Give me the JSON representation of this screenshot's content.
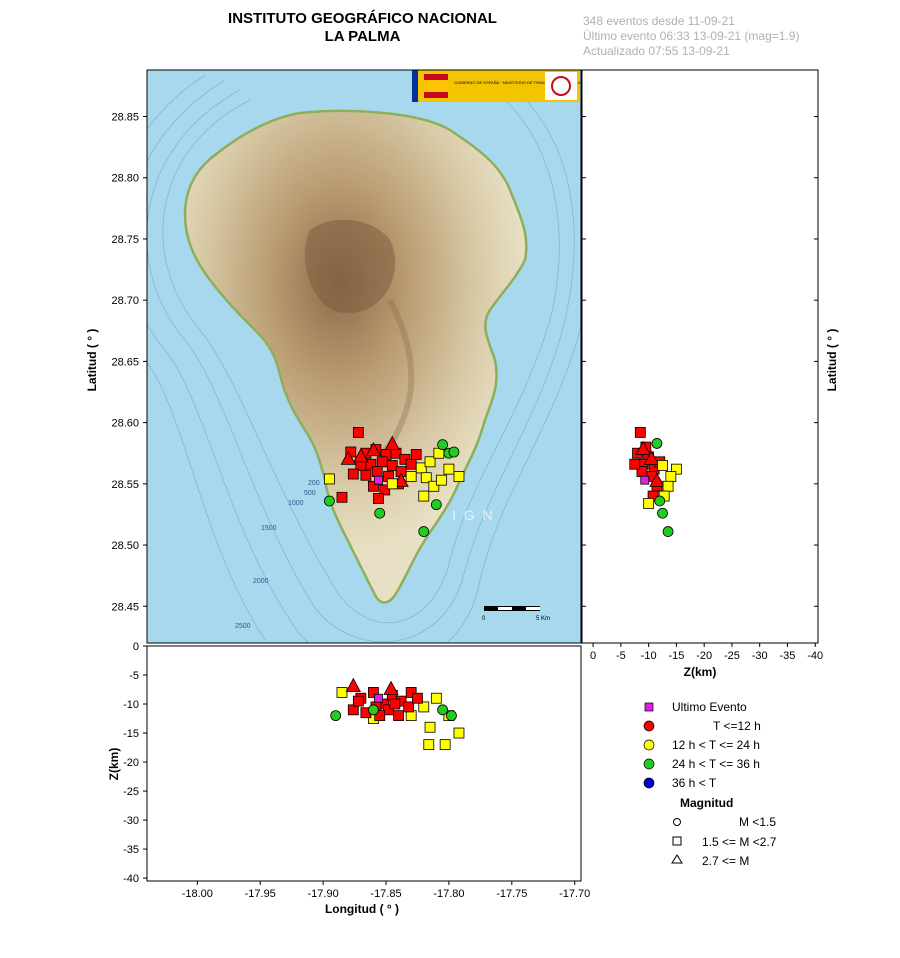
{
  "header": {
    "title_line1": "INSTITUTO GEOGRÁFICO NACIONAL",
    "title_line2": "LA PALMA"
  },
  "info": {
    "line1": "348 eventos desde 11-09-21",
    "line2": "Último evento 06:33 13-09-21  (mag=1.9)",
    "line3": "Actualizado   07:55  13-09-21"
  },
  "map": {
    "watermark": "I G N",
    "scale_label_0": "0",
    "scale_label_5": "5 Km",
    "depth_contours": [
      "200",
      "500",
      "1000",
      "1500",
      "2000",
      "2500"
    ],
    "logo_text": "GOBIERNO DE ESPAÑA · MINISTERIO DE TRANSPORTES, MOVILIDAD Y AGENDA URBANA"
  },
  "colors": {
    "last_event": "#e020e0",
    "t12": "#ff0000",
    "t24": "#ffff00",
    "t36": "#22cc22",
    "t_old": "#0000cc",
    "sea": "#a8d8ee",
    "land": "#e8dcc0"
  },
  "legend": {
    "last_event": "Ultimo Evento",
    "t12": "T <=12 h",
    "t24": "12 h  < T <= 24 h",
    "t36": "24 h  < T <= 36 h",
    "t_old": "36 h <  T",
    "magnitude_title": "Magnitud",
    "m_small": "M <1.5",
    "m_mid": "1.5 <= M <2.7",
    "m_big": "2.7 <= M"
  },
  "chart_data": [
    {
      "panel": "map",
      "type": "scatter",
      "xlabel": "",
      "ylabel": "Latitud ( ° )",
      "ylim": [
        28.42,
        28.888
      ],
      "yticks": [
        "28.85",
        "28.80",
        "28.75",
        "28.70",
        "28.65",
        "28.60",
        "28.55",
        "28.50",
        "28.45"
      ],
      "ytick_values": [
        28.85,
        28.8,
        28.75,
        28.7,
        28.65,
        28.6,
        28.55,
        28.5,
        28.45
      ],
      "xlim": [
        -18.04,
        -17.695
      ],
      "points": [
        {
          "x": -17.872,
          "y": 28.592,
          "c": "t12",
          "s": "square"
        },
        {
          "x": -17.878,
          "y": 28.576,
          "c": "t12",
          "s": "square"
        },
        {
          "x": -17.866,
          "y": 28.575,
          "c": "t12",
          "s": "square"
        },
        {
          "x": -17.858,
          "y": 28.578,
          "c": "t12",
          "s": "square"
        },
        {
          "x": -17.85,
          "y": 28.574,
          "c": "t12",
          "s": "square"
        },
        {
          "x": -17.842,
          "y": 28.575,
          "c": "t12",
          "s": "square"
        },
        {
          "x": -17.835,
          "y": 28.57,
          "c": "t12",
          "s": "square"
        },
        {
          "x": -17.87,
          "y": 28.565,
          "c": "t12",
          "s": "square"
        },
        {
          "x": -17.862,
          "y": 28.566,
          "c": "t12",
          "s": "square"
        },
        {
          "x": -17.853,
          "y": 28.568,
          "c": "t12",
          "s": "square"
        },
        {
          "x": -17.845,
          "y": 28.565,
          "c": "t12",
          "s": "square"
        },
        {
          "x": -17.838,
          "y": 28.56,
          "c": "t12",
          "s": "square"
        },
        {
          "x": -17.876,
          "y": 28.558,
          "c": "t12",
          "s": "square"
        },
        {
          "x": -17.866,
          "y": 28.557,
          "c": "t12",
          "s": "square"
        },
        {
          "x": -17.857,
          "y": 28.56,
          "c": "t12",
          "s": "square"
        },
        {
          "x": -17.848,
          "y": 28.556,
          "c": "t12",
          "s": "square"
        },
        {
          "x": -17.84,
          "y": 28.55,
          "c": "t12",
          "s": "square"
        },
        {
          "x": -17.86,
          "y": 28.548,
          "c": "t12",
          "s": "square"
        },
        {
          "x": -17.851,
          "y": 28.545,
          "c": "t12",
          "s": "square"
        },
        {
          "x": -17.856,
          "y": 28.538,
          "c": "t12",
          "s": "square"
        },
        {
          "x": -17.885,
          "y": 28.539,
          "c": "t12",
          "s": "square"
        },
        {
          "x": -17.83,
          "y": 28.566,
          "c": "t12",
          "s": "square"
        },
        {
          "x": -17.826,
          "y": 28.574,
          "c": "t12",
          "s": "square"
        },
        {
          "x": -17.88,
          "y": 28.57,
          "c": "t12",
          "s": "triangle"
        },
        {
          "x": -17.86,
          "y": 28.577,
          "c": "t12",
          "s": "triangle"
        },
        {
          "x": -17.845,
          "y": 28.582,
          "c": "t12",
          "s": "triangle"
        },
        {
          "x": -17.838,
          "y": 28.552,
          "c": "t12",
          "s": "triangle"
        },
        {
          "x": -17.87,
          "y": 28.572,
          "c": "t12",
          "s": "triangle"
        },
        {
          "x": -17.83,
          "y": 28.556,
          "c": "t24",
          "s": "square"
        },
        {
          "x": -17.822,
          "y": 28.563,
          "c": "t24",
          "s": "square"
        },
        {
          "x": -17.815,
          "y": 28.568,
          "c": "t24",
          "s": "square"
        },
        {
          "x": -17.808,
          "y": 28.575,
          "c": "t24",
          "s": "square"
        },
        {
          "x": -17.8,
          "y": 28.562,
          "c": "t24",
          "s": "square"
        },
        {
          "x": -17.792,
          "y": 28.556,
          "c": "t24",
          "s": "square"
        },
        {
          "x": -17.818,
          "y": 28.555,
          "c": "t24",
          "s": "square"
        },
        {
          "x": -17.812,
          "y": 28.548,
          "c": "t24",
          "s": "square"
        },
        {
          "x": -17.82,
          "y": 28.54,
          "c": "t24",
          "s": "square"
        },
        {
          "x": -17.806,
          "y": 28.553,
          "c": "t24",
          "s": "square"
        },
        {
          "x": -17.895,
          "y": 28.554,
          "c": "t24",
          "s": "square"
        },
        {
          "x": -17.845,
          "y": 28.55,
          "c": "t24",
          "s": "square"
        },
        {
          "x": -17.805,
          "y": 28.582,
          "c": "t36",
          "s": "circle"
        },
        {
          "x": -17.8,
          "y": 28.575,
          "c": "t36",
          "s": "circle"
        },
        {
          "x": -17.81,
          "y": 28.533,
          "c": "t36",
          "s": "circle"
        },
        {
          "x": -17.82,
          "y": 28.511,
          "c": "t36",
          "s": "circle"
        },
        {
          "x": -17.855,
          "y": 28.526,
          "c": "t36",
          "s": "circle"
        },
        {
          "x": -17.895,
          "y": 28.536,
          "c": "t36",
          "s": "circle"
        },
        {
          "x": -17.796,
          "y": 28.576,
          "c": "t36",
          "s": "circle"
        },
        {
          "x": -17.856,
          "y": 28.553,
          "c": "last_event",
          "s": "square"
        }
      ]
    },
    {
      "panel": "depth-lat",
      "type": "scatter",
      "xlabel": "Z(km)",
      "ylabel": "Latitud ( ° )",
      "xlim": [
        2,
        -40.5
      ],
      "xticks": [
        "0",
        "-5",
        "-10",
        "-15",
        "-20",
        "-25",
        "-30",
        "-35",
        "-40"
      ],
      "xtick_values": [
        0,
        -5,
        -10,
        -15,
        -20,
        -25,
        -30,
        -35,
        -40
      ],
      "ylim": [
        28.42,
        28.888
      ],
      "points": [
        {
          "x": -8.5,
          "y": 28.592,
          "c": "t12",
          "s": "square"
        },
        {
          "x": -9.5,
          "y": 28.58,
          "c": "t12",
          "s": "square"
        },
        {
          "x": -8,
          "y": 28.575,
          "c": "t12",
          "s": "square"
        },
        {
          "x": -10,
          "y": 28.572,
          "c": "t12",
          "s": "square"
        },
        {
          "x": -9,
          "y": 28.566,
          "c": "t12",
          "s": "square"
        },
        {
          "x": -11,
          "y": 28.562,
          "c": "t12",
          "s": "square"
        },
        {
          "x": -10.5,
          "y": 28.556,
          "c": "t12",
          "s": "square"
        },
        {
          "x": -8.8,
          "y": 28.56,
          "c": "t12",
          "s": "square"
        },
        {
          "x": -11.5,
          "y": 28.548,
          "c": "t12",
          "s": "square"
        },
        {
          "x": -10.8,
          "y": 28.54,
          "c": "t12",
          "s": "square"
        },
        {
          "x": -12,
          "y": 28.568,
          "c": "t12",
          "s": "square"
        },
        {
          "x": -7.5,
          "y": 28.566,
          "c": "t12",
          "s": "square"
        },
        {
          "x": -9,
          "y": 28.578,
          "c": "t12",
          "s": "triangle"
        },
        {
          "x": -10.5,
          "y": 28.57,
          "c": "t12",
          "s": "triangle"
        },
        {
          "x": -11.5,
          "y": 28.552,
          "c": "t12",
          "s": "triangle"
        },
        {
          "x": -15,
          "y": 28.562,
          "c": "t24",
          "s": "square"
        },
        {
          "x": -14,
          "y": 28.556,
          "c": "t24",
          "s": "square"
        },
        {
          "x": -13.5,
          "y": 28.548,
          "c": "t24",
          "s": "square"
        },
        {
          "x": -12.8,
          "y": 28.54,
          "c": "t24",
          "s": "square"
        },
        {
          "x": -10,
          "y": 28.534,
          "c": "t24",
          "s": "square"
        },
        {
          "x": -12.5,
          "y": 28.565,
          "c": "t24",
          "s": "square"
        },
        {
          "x": -11.5,
          "y": 28.583,
          "c": "t36",
          "s": "circle"
        },
        {
          "x": -12.5,
          "y": 28.526,
          "c": "t36",
          "s": "circle"
        },
        {
          "x": -13.5,
          "y": 28.511,
          "c": "t36",
          "s": "circle"
        },
        {
          "x": -12,
          "y": 28.536,
          "c": "t36",
          "s": "circle"
        },
        {
          "x": -9.3,
          "y": 28.553,
          "c": "last_event",
          "s": "square"
        }
      ]
    },
    {
      "panel": "lon-depth",
      "type": "scatter",
      "xlabel": "Longitud ( ° )",
      "ylabel": "Z(km)",
      "xlim": [
        -18.04,
        -17.695
      ],
      "xticks": [
        "-18.00",
        "-17.95",
        "-17.90",
        "-17.85",
        "-17.80",
        "-17.75",
        "-17.70"
      ],
      "xtick_values": [
        -18,
        -17.95,
        -17.9,
        -17.85,
        -17.8,
        -17.75,
        -17.7
      ],
      "ylim": [
        0,
        -40.5
      ],
      "yticks": [
        "0",
        "-5",
        "-10",
        "-15",
        "-20",
        "-25",
        "-30",
        "-35",
        "-40"
      ],
      "ytick_values": [
        0,
        -5,
        -10,
        -15,
        -20,
        -25,
        -30,
        -35,
        -40
      ],
      "points": [
        {
          "x": -17.885,
          "y": -8,
          "c": "t24",
          "s": "square"
        },
        {
          "x": -17.83,
          "y": -12,
          "c": "t24",
          "s": "square"
        },
        {
          "x": -17.815,
          "y": -14,
          "c": "t24",
          "s": "square"
        },
        {
          "x": -17.816,
          "y": -17,
          "c": "t24",
          "s": "square"
        },
        {
          "x": -17.803,
          "y": -17,
          "c": "t24",
          "s": "square"
        },
        {
          "x": -17.792,
          "y": -15,
          "c": "t24",
          "s": "square"
        },
        {
          "x": -17.81,
          "y": -9,
          "c": "t24",
          "s": "square"
        },
        {
          "x": -17.82,
          "y": -10.5,
          "c": "t24",
          "s": "square"
        },
        {
          "x": -17.86,
          "y": -12.5,
          "c": "t24",
          "s": "square"
        },
        {
          "x": -17.8,
          "y": -12,
          "c": "t24",
          "s": "square"
        },
        {
          "x": -17.87,
          "y": -9,
          "c": "t12",
          "s": "square"
        },
        {
          "x": -17.86,
          "y": -8,
          "c": "t12",
          "s": "square"
        },
        {
          "x": -17.852,
          "y": -10,
          "c": "t12",
          "s": "square"
        },
        {
          "x": -17.845,
          "y": -8.5,
          "c": "t12",
          "s": "square"
        },
        {
          "x": -17.838,
          "y": -9.5,
          "c": "t12",
          "s": "square"
        },
        {
          "x": -17.83,
          "y": -8,
          "c": "t12",
          "s": "square"
        },
        {
          "x": -17.876,
          "y": -11,
          "c": "t12",
          "s": "square"
        },
        {
          "x": -17.866,
          "y": -11.5,
          "c": "t12",
          "s": "square"
        },
        {
          "x": -17.858,
          "y": -10.5,
          "c": "t12",
          "s": "square"
        },
        {
          "x": -17.848,
          "y": -11,
          "c": "t12",
          "s": "square"
        },
        {
          "x": -17.84,
          "y": -12,
          "c": "t12",
          "s": "square"
        },
        {
          "x": -17.832,
          "y": -10.5,
          "c": "t12",
          "s": "square"
        },
        {
          "x": -17.825,
          "y": -9,
          "c": "t12",
          "s": "square"
        },
        {
          "x": -17.872,
          "y": -9.5,
          "c": "t12",
          "s": "square"
        },
        {
          "x": -17.855,
          "y": -12,
          "c": "t12",
          "s": "square"
        },
        {
          "x": -17.843,
          "y": -10,
          "c": "t12",
          "s": "square"
        },
        {
          "x": -17.876,
          "y": -7,
          "c": "t12",
          "s": "triangle"
        },
        {
          "x": -17.846,
          "y": -7.5,
          "c": "t12",
          "s": "triangle"
        },
        {
          "x": -17.89,
          "y": -12,
          "c": "t36",
          "s": "circle"
        },
        {
          "x": -17.805,
          "y": -11,
          "c": "t36",
          "s": "circle"
        },
        {
          "x": -17.798,
          "y": -12,
          "c": "t36",
          "s": "circle"
        },
        {
          "x": -17.86,
          "y": -11,
          "c": "t36",
          "s": "circle"
        },
        {
          "x": -17.856,
          "y": -9,
          "c": "last_event",
          "s": "square"
        }
      ]
    }
  ]
}
